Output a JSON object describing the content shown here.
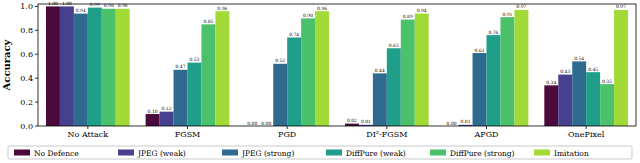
{
  "chart_data": {
    "type": "bar",
    "y_label": "Accuracy",
    "categories": [
      "No Attack",
      "FGSM",
      "PGD",
      "DI²-FGSM",
      "APGD",
      "OnePixel"
    ],
    "series": [
      {
        "name": "No Defence",
        "color": "#4b0a3c",
        "values": [
          1.0,
          0.1,
          0.0,
          0.02,
          0.0,
          0.34
        ],
        "value_labels": [
          "1.00",
          "0.10",
          "0.00",
          "0.02",
          "0.00",
          "0.34"
        ]
      },
      {
        "name": "JPEG (weak)",
        "color": "#47408e",
        "values": [
          1.0,
          0.12,
          0.0,
          0.01,
          0.01,
          0.43
        ],
        "value_labels": [
          "1.00",
          "0.12",
          "0.00",
          "0.01",
          "0.01",
          "0.43"
        ]
      },
      {
        "name": "JPEG (strong)",
        "color": "#2f6b8e",
        "values": [
          0.94,
          0.47,
          0.52,
          0.44,
          0.61,
          0.54
        ],
        "value_labels": [
          "0.94",
          "0.47",
          "0.52",
          "0.44",
          "0.61",
          "0.54"
        ]
      },
      {
        "name": "DiffPure (weak)",
        "color": "#1f9e89",
        "values": [
          0.99,
          0.53,
          0.74,
          0.65,
          0.76,
          0.45
        ],
        "value_labels": [
          "0.99",
          "0.53",
          "0.74",
          "0.65",
          "0.76",
          "0.45"
        ]
      },
      {
        "name": "DiffPure (strong)",
        "color": "#4cc16c",
        "values": [
          0.98,
          0.85,
          0.9,
          0.89,
          0.91,
          0.35
        ],
        "value_labels": [
          "0.98",
          "0.85",
          "0.90",
          "0.89",
          "0.91",
          "0.35"
        ]
      },
      {
        "name": "Imitation",
        "color": "#a2da37",
        "values": [
          0.98,
          0.96,
          0.96,
          0.94,
          0.97,
          0.97
        ],
        "value_labels": [
          "0.98",
          "0.96",
          "0.96",
          "0.94",
          "0.97",
          "0.97"
        ]
      }
    ],
    "ylim": [
      0,
      1.02
    ],
    "yticks": [
      {
        "value": 0,
        "label": "0.0"
      },
      {
        "value": 0.2,
        "label": "0.2"
      },
      {
        "value": 0.4,
        "label": "0.4"
      },
      {
        "value": 0.6,
        "label": "0.6"
      },
      {
        "value": 0.8,
        "label": "0.8"
      },
      {
        "value": 1,
        "label": "1.0"
      }
    ],
    "grid": false,
    "data_labels": true,
    "legend": "bottom"
  }
}
